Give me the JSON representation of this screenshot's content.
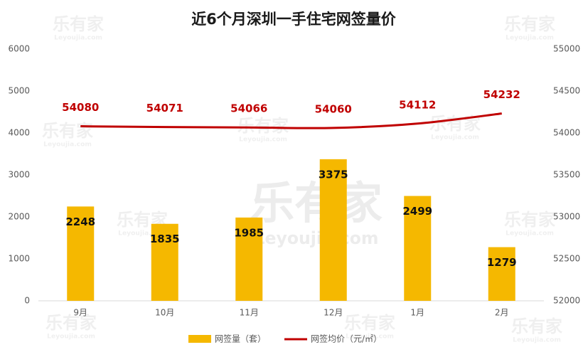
{
  "chart_data": {
    "type": "bar_line",
    "title": "近6个月深圳一手住宅网签量价",
    "categories": [
      "9月",
      "10月",
      "11月",
      "12月",
      "1月",
      "2月"
    ],
    "series": [
      {
        "name": "网签量（套）",
        "type": "bar",
        "color": "#f5b800",
        "values": [
          2248,
          1835,
          1985,
          3375,
          2499,
          1279
        ]
      },
      {
        "name": "网签均价（元/㎡）",
        "type": "line",
        "axis": "y2",
        "color": "#c00000",
        "values": [
          54080,
          54071,
          54066,
          54060,
          54112,
          54232
        ]
      }
    ],
    "ylim": [
      0,
      6000
    ],
    "yticks": [
      0,
      1000,
      2000,
      3000,
      4000,
      5000,
      6000
    ],
    "y2lim": [
      52000,
      55000
    ],
    "y2ticks": [
      52000,
      52500,
      53000,
      53500,
      54000,
      54500,
      55000
    ],
    "grid": false,
    "legend": "bottom",
    "watermark": [
      "乐有家",
      "Leyoujia.com"
    ]
  }
}
